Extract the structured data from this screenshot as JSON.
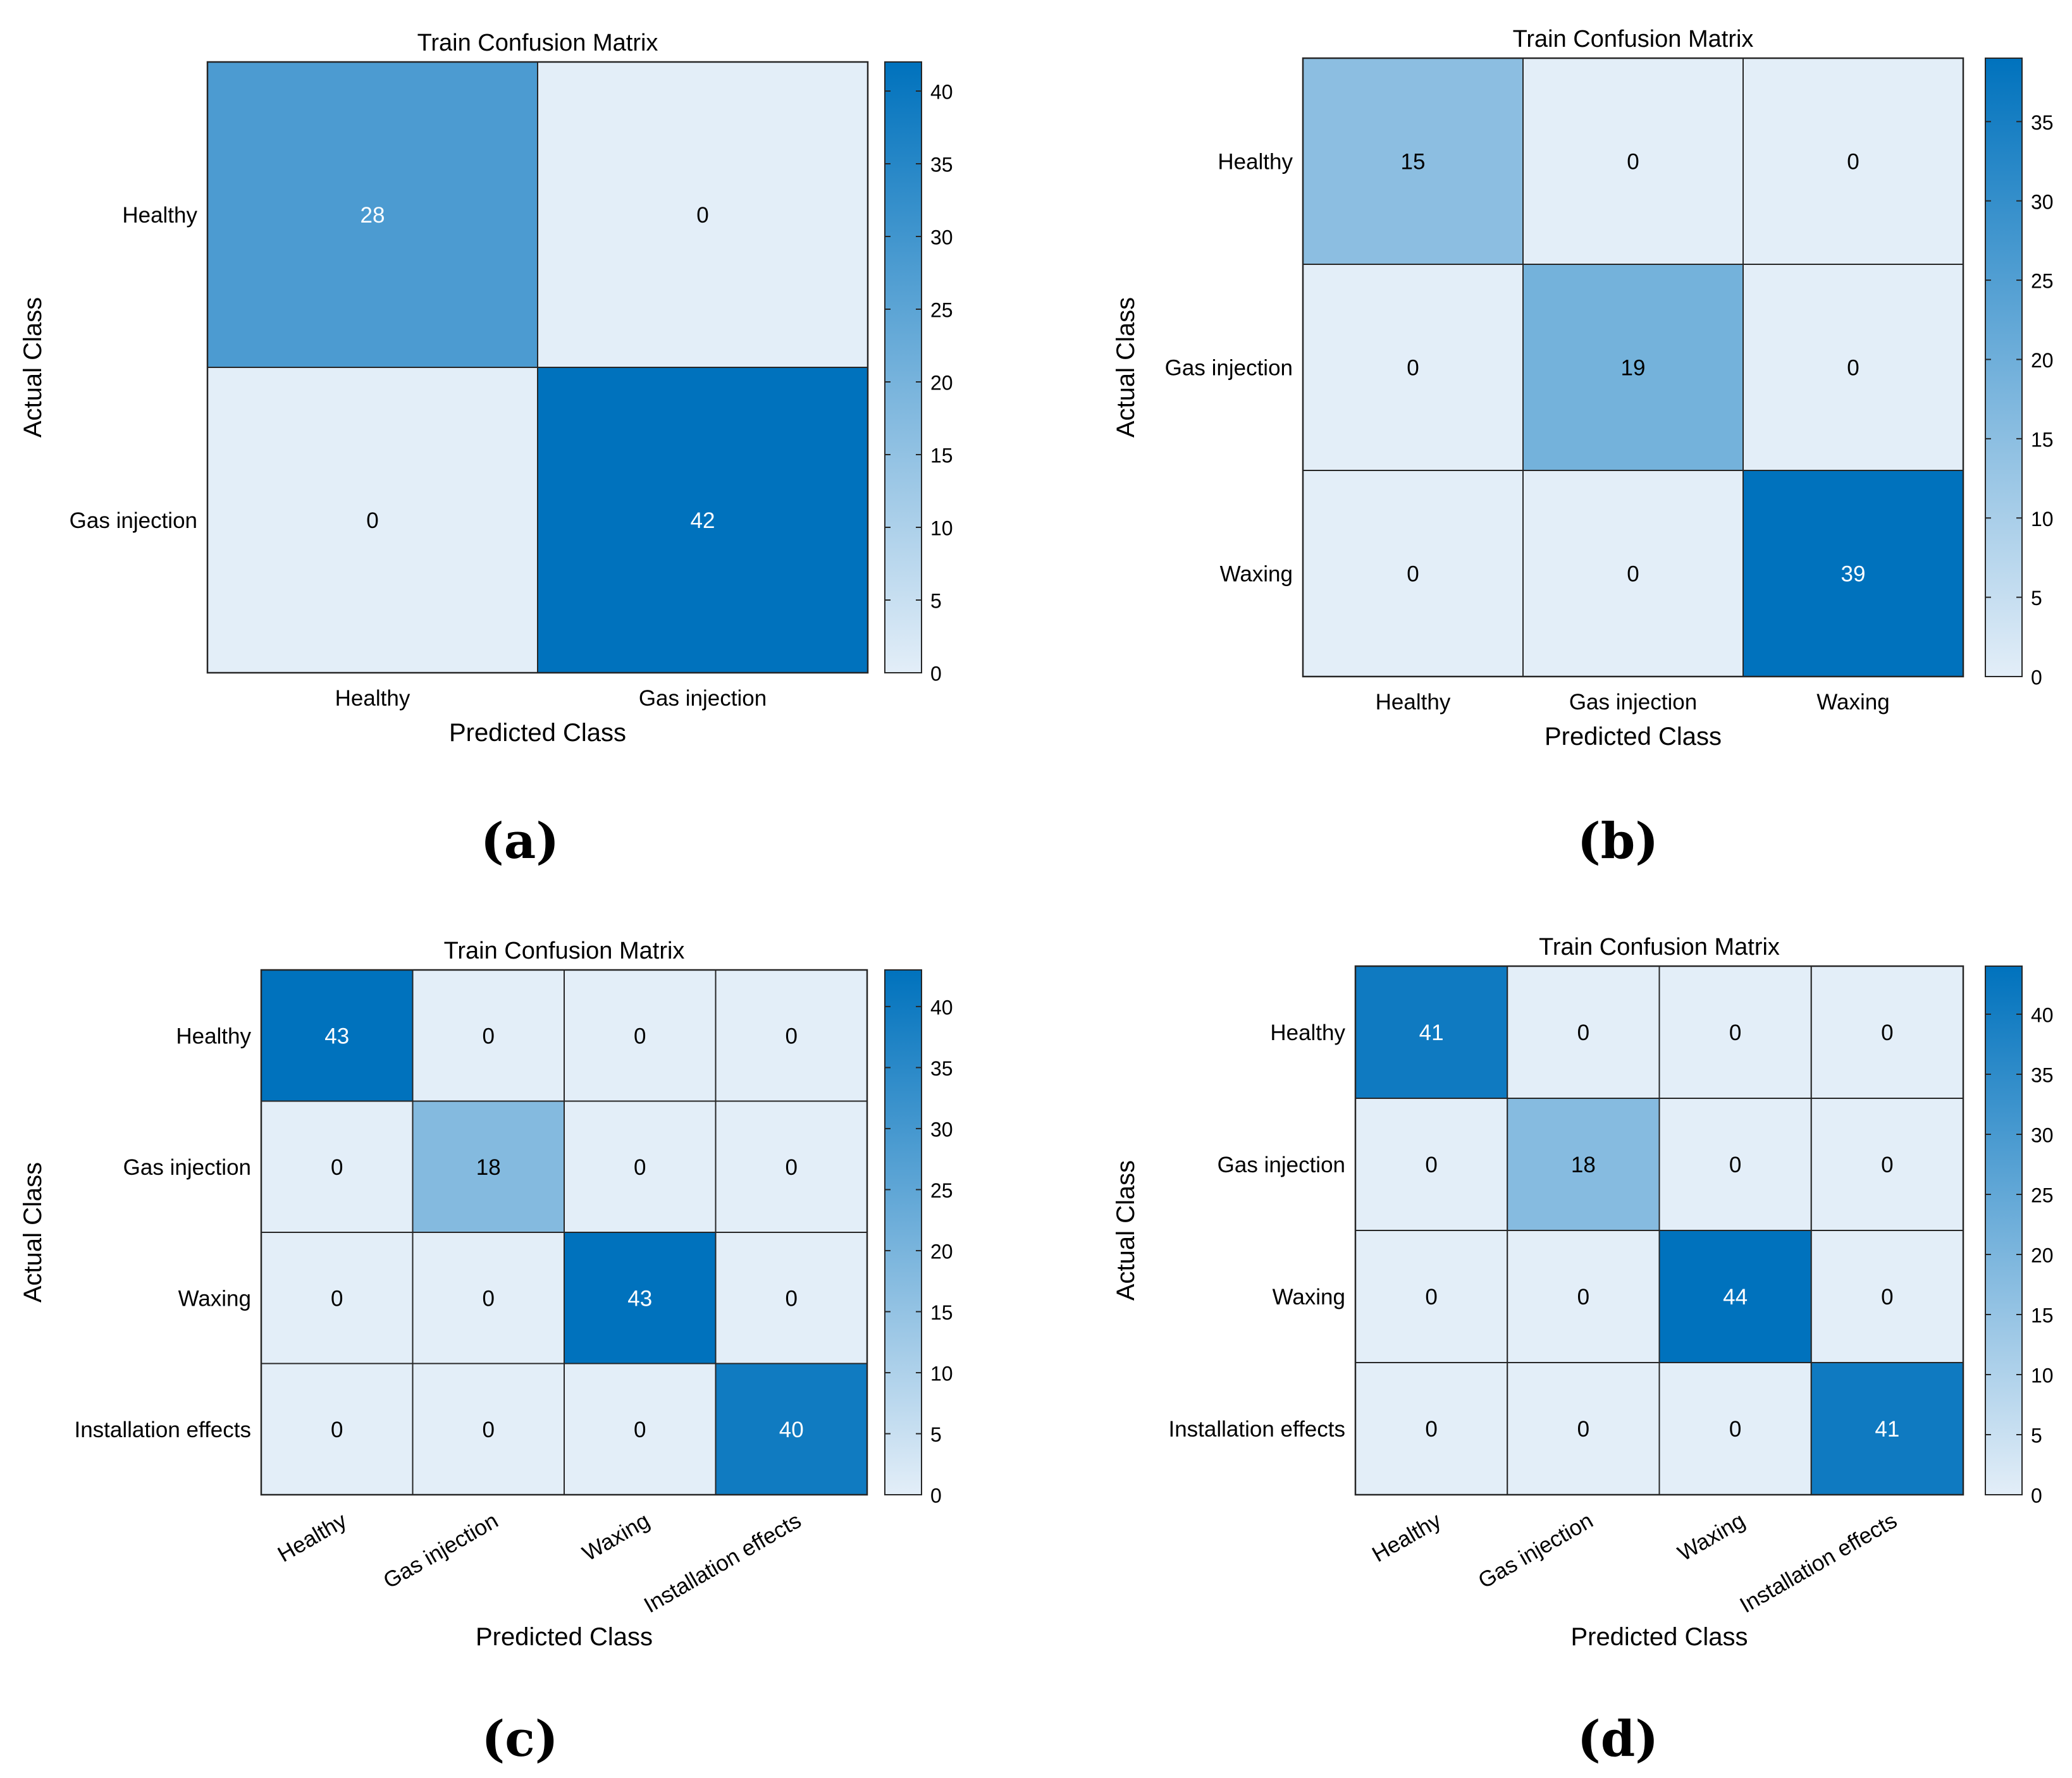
{
  "chart_data": [
    {
      "type": "heatmap",
      "panel": "(a)",
      "title": "Train Confusion Matrix",
      "xlabel": "Predicted Class",
      "ylabel": "Actual Class",
      "row_labels": [
        "Healthy",
        "Gas injection"
      ],
      "col_labels": [
        "Healthy",
        "Gas injection"
      ],
      "matrix": [
        [
          28,
          0
        ],
        [
          0,
          42
        ]
      ],
      "colorbar": {
        "min": 0,
        "max": 42,
        "ticks": [
          0,
          5,
          10,
          15,
          20,
          25,
          30,
          35,
          40
        ]
      }
    },
    {
      "type": "heatmap",
      "panel": "(b)",
      "title": "Train Confusion Matrix",
      "xlabel": "Predicted Class",
      "ylabel": "Actual Class",
      "row_labels": [
        "Healthy",
        "Gas injection",
        "Waxing"
      ],
      "col_labels": [
        "Healthy",
        "Gas injection",
        "Waxing"
      ],
      "matrix": [
        [
          15,
          0,
          0
        ],
        [
          0,
          19,
          0
        ],
        [
          0,
          0,
          39
        ]
      ],
      "colorbar": {
        "min": 0,
        "max": 39,
        "ticks": [
          0,
          5,
          10,
          15,
          20,
          25,
          30,
          35
        ]
      }
    },
    {
      "type": "heatmap",
      "panel": "(c)",
      "title": "Train Confusion Matrix",
      "xlabel": "Predicted Class",
      "ylabel": "Actual Class",
      "row_labels": [
        "Healthy",
        "Gas injection",
        "Waxing",
        "Installation effects"
      ],
      "col_labels": [
        "Healthy",
        "Gas injection",
        "Waxing",
        "Installation effects"
      ],
      "matrix": [
        [
          43,
          0,
          0,
          0
        ],
        [
          0,
          18,
          0,
          0
        ],
        [
          0,
          0,
          43,
          0
        ],
        [
          0,
          0,
          0,
          40
        ]
      ],
      "colorbar": {
        "min": 0,
        "max": 43,
        "ticks": [
          0,
          5,
          10,
          15,
          20,
          25,
          30,
          35,
          40
        ]
      }
    },
    {
      "type": "heatmap",
      "panel": "(d)",
      "title": "Train Confusion Matrix",
      "xlabel": "Predicted Class",
      "ylabel": "Actual Class",
      "row_labels": [
        "Healthy",
        "Gas injection",
        "Waxing",
        "Installation effects"
      ],
      "col_labels": [
        "Healthy",
        "Gas injection",
        "Waxing",
        "Installation effects"
      ],
      "matrix": [
        [
          41,
          0,
          0,
          0
        ],
        [
          0,
          18,
          0,
          0
        ],
        [
          0,
          0,
          44,
          0
        ],
        [
          0,
          0,
          0,
          41
        ]
      ],
      "colorbar": {
        "min": 0,
        "max": 44,
        "ticks": [
          0,
          5,
          10,
          15,
          20,
          25,
          30,
          35,
          40
        ]
      }
    }
  ],
  "colors": {
    "low": "#e3eef8",
    "high": "#0072bd",
    "grid": "#262626",
    "text_dark": "#000000",
    "text_light": "#ffffff"
  }
}
